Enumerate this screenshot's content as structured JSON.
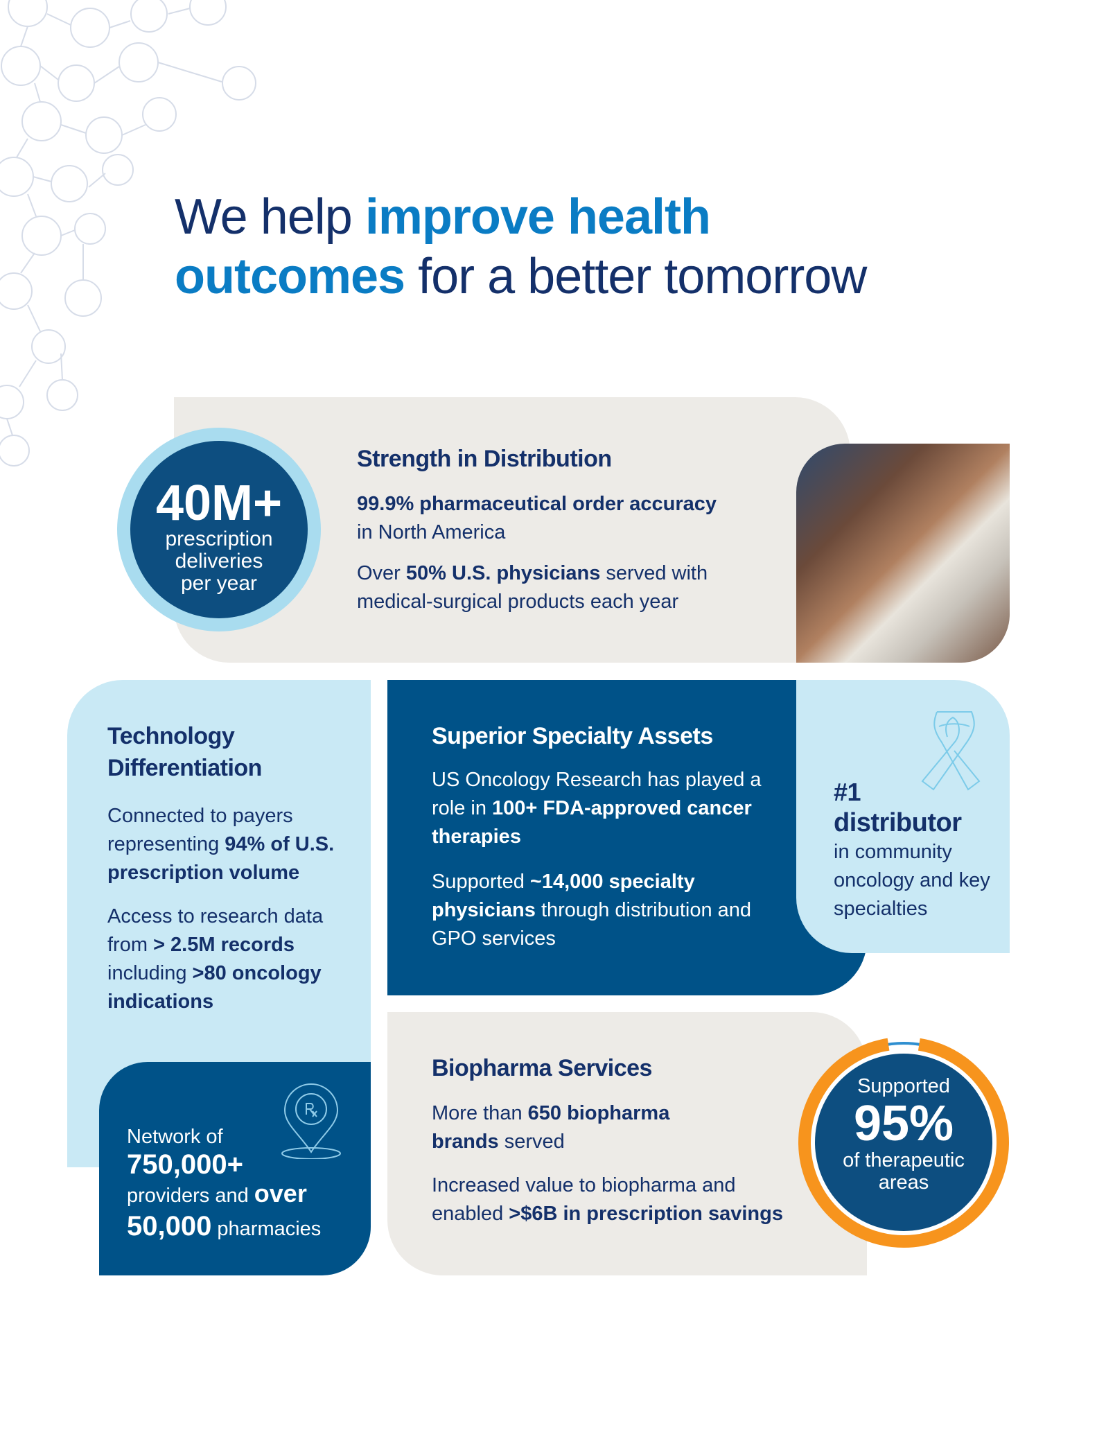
{
  "headline": {
    "part1": "We help ",
    "highlight1": "improve health",
    "highlight2": "outcomes",
    "part2": " for a better tomorrow"
  },
  "distribution": {
    "stat_value": "40M+",
    "stat_label": [
      "prescription",
      "deliveries",
      "per year"
    ],
    "title": "Strength in Distribution",
    "p1_bold": "99.9% pharmaceutical order accuracy",
    "p1_rest": "in North America",
    "p2_pre": "Over ",
    "p2_bold": "50% U.S. physicians",
    "p2_rest": " served with medical-surgical products each year"
  },
  "technology": {
    "title": [
      "Technology",
      "Differentiation"
    ],
    "p1_pre": "Connected to payers representing ",
    "p1_bold": "94% of U.S. prescription volume",
    "p2_pre": "Access to research data from ",
    "p2_bold1": "> 2.5M records",
    "p2_mid": " including ",
    "p2_bold2": ">80 oncology indications"
  },
  "network": {
    "pre": "Network of",
    "bold1": "750,000+",
    "mid": "providers and ",
    "bold2": "over",
    "bold3": "50,000",
    "post": " pharmacies",
    "icon": "rx-location-pin-icon"
  },
  "specialty": {
    "title": "Superior Specialty Assets",
    "p1_pre": "US Oncology Research has played a role in ",
    "p1_bold": "100+ FDA-approved cancer therapies",
    "p2_pre": "Supported ",
    "p2_bold": "~14,000 specialty physicians",
    "p2_rest": " through distribution and GPO services"
  },
  "distributor": {
    "rank": "#1",
    "bold": "distributor",
    "rest": "in community oncology and key specialties",
    "icon": "awareness-ribbon-icon"
  },
  "biopharma": {
    "title": "Biopharma Services",
    "p1_pre": "More than ",
    "p1_bold": "650 biopharma brands",
    "p1_rest": " served",
    "p2_pre": "Increased value to biopharma and enabled ",
    "p2_bold": ">$6B in prescription savings"
  },
  "therapeutic": {
    "pre": "Supported",
    "value": "95%",
    "post": [
      "of therapeutic",
      "areas"
    ],
    "percent": 95
  },
  "colors": {
    "navy": "#14306a",
    "blue": "#0a7cc4",
    "dark_card": "#005288",
    "light_card": "#c9e9f5",
    "gray_card": "#edebe7",
    "orange": "#f7941d"
  }
}
